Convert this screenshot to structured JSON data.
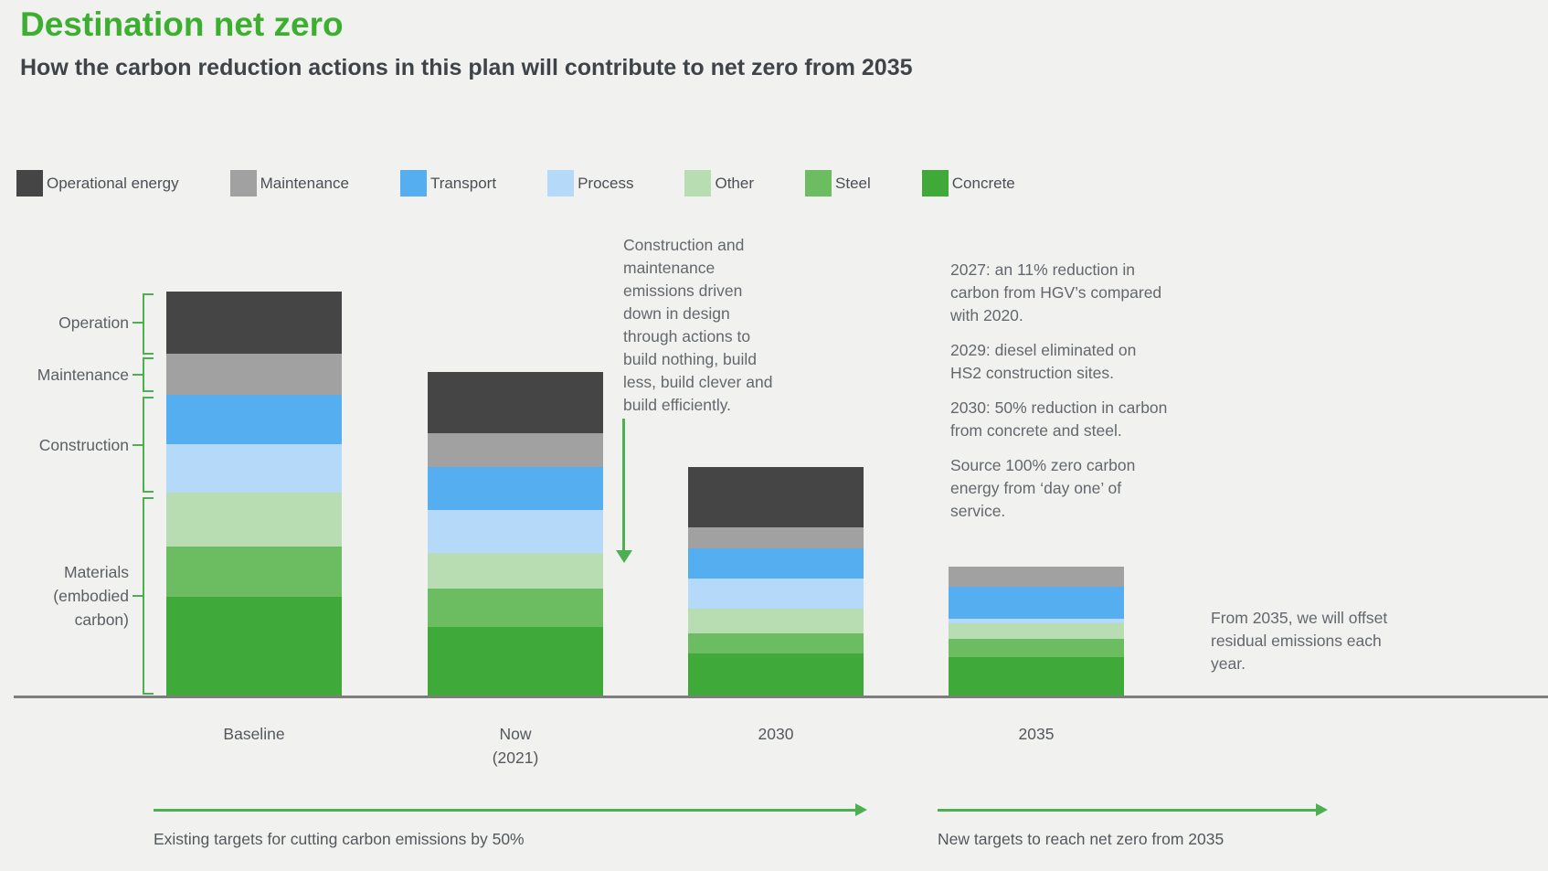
{
  "page": {
    "title": "Destination net zero",
    "subtitle": "How the carbon reduction actions in this plan will contribute to net zero from 2035"
  },
  "colors": {
    "title_green": "#3caf30",
    "accent_green": "#4cb050",
    "background": "#f1f1ef",
    "axis_line": "#7d7d7d"
  },
  "legend": {
    "items": [
      {
        "label": "Operational energy",
        "color": "#454545"
      },
      {
        "label": "Maintenance",
        "color": "#a1a1a1"
      },
      {
        "label": "Transport",
        "color": "#55aeef"
      },
      {
        "label": "Process",
        "color": "#b5d9f8"
      },
      {
        "label": "Other",
        "color": "#b9ddb2"
      },
      {
        "label": "Steel",
        "color": "#6cbd62"
      },
      {
        "label": "Concrete",
        "color": "#3fa939"
      }
    ]
  },
  "chart_data": {
    "type": "bar",
    "stacked": true,
    "title": "Destination net zero",
    "xlabel": "",
    "ylabel": "",
    "unit": "relative emissions (pixel-proportional, no numeric axis shown)",
    "grid": false,
    "legend_position": "top",
    "categories": [
      "Baseline",
      "Now (2021)",
      "2030",
      "2035"
    ],
    "category_label_lines": [
      [
        "Baseline"
      ],
      [
        "Now",
        "(2021)"
      ],
      [
        "2030"
      ],
      [
        "2035"
      ]
    ],
    "stack_order_top_to_bottom": [
      "Operational energy",
      "Maintenance",
      "Transport",
      "Process",
      "Other",
      "Steel",
      "Concrete"
    ],
    "series": [
      {
        "name": "Operational energy",
        "color": "#454545",
        "values": [
          68,
          67,
          66,
          0
        ]
      },
      {
        "name": "Maintenance",
        "color": "#a1a1a1",
        "values": [
          45,
          37,
          23,
          22
        ]
      },
      {
        "name": "Transport",
        "color": "#55aeef",
        "values": [
          54,
          47,
          33,
          35
        ]
      },
      {
        "name": "Process",
        "color": "#b5d9f8",
        "values": [
          53,
          47,
          33,
          5
        ]
      },
      {
        "name": "Other",
        "color": "#b9ddb2",
        "values": [
          59,
          39,
          27,
          17
        ]
      },
      {
        "name": "Steel",
        "color": "#6cbd62",
        "values": [
          55,
          42,
          22,
          20
        ]
      },
      {
        "name": "Concrete",
        "color": "#3fa939",
        "values": [
          109,
          76,
          47,
          43
        ]
      }
    ],
    "stack_totals": [
      443,
      355,
      251,
      142
    ],
    "group_brackets": [
      {
        "label": "Operation",
        "lines": [
          "Operation"
        ],
        "covers": [
          "Operational energy"
        ]
      },
      {
        "label": "Maintenance",
        "lines": [
          "Maintenance"
        ],
        "covers": [
          "Maintenance"
        ]
      },
      {
        "label": "Construction",
        "lines": [
          "Construction"
        ],
        "covers": [
          "Transport",
          "Process"
        ]
      },
      {
        "label": "Materials (embodied carbon)",
        "lines": [
          "Materials",
          "(embodied",
          "carbon)"
        ],
        "covers": [
          "Other",
          "Steel",
          "Concrete"
        ]
      }
    ]
  },
  "annotations": {
    "design_note": "Construction and maintenance emissions driven down in design through actions to build nothing, build less, build clever and build efficiently.",
    "milestones": [
      "2027: an 11% reduction in carbon from HGV’s compared with 2020.",
      "2029: diesel eliminated on HS2 construction sites.",
      "2030: 50% reduction in carbon from concrete and steel.",
      "Source 100% zero carbon energy from ‘day one’ of service."
    ],
    "offset_note": "From 2035, we will offset residual emissions each year."
  },
  "timeline": {
    "left_caption": "Existing targets for cutting carbon emissions by 50%",
    "right_caption": "New targets to reach net zero from 2035"
  }
}
